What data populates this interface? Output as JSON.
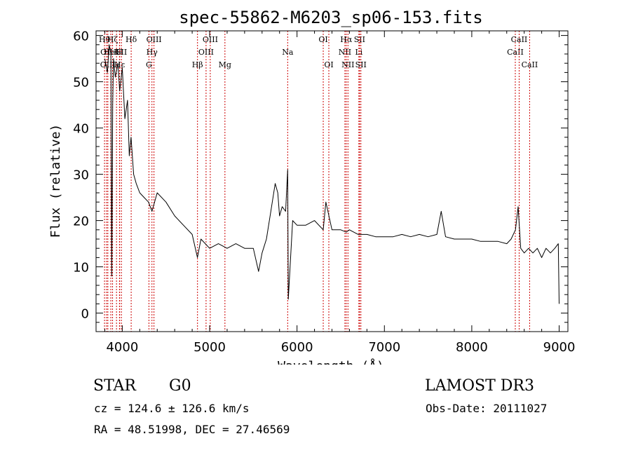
{
  "chart_data": {
    "type": "line",
    "title": "spec-55862-M6203_sp06-153.fits",
    "xlabel": "Wavelength (Å)",
    "ylabel": "Flux (relative)",
    "xlim": [
      3700,
      9100
    ],
    "ylim": [
      -4,
      61
    ],
    "x_ticks": [
      4000,
      5000,
      6000,
      7000,
      8000,
      9000
    ],
    "y_ticks": [
      0,
      10,
      20,
      30,
      40,
      50,
      60
    ],
    "grid": false,
    "colors": {
      "spectrum": "#000000",
      "lines": "#cc0000"
    },
    "series": [
      {
        "name": "spectrum",
        "x": [
          3800,
          3830,
          3850,
          3870,
          3880,
          3890,
          3900,
          3920,
          3950,
          3970,
          4000,
          4030,
          4060,
          4080,
          4100,
          4130,
          4160,
          4200,
          4250,
          4300,
          4340,
          4400,
          4500,
          4600,
          4700,
          4800,
          4860,
          4900,
          5000,
          5100,
          5200,
          5300,
          5400,
          5500,
          5560,
          5600,
          5650,
          5700,
          5750,
          5780,
          5800,
          5830,
          5870,
          5893,
          5900,
          5950,
          6000,
          6100,
          6200,
          6300,
          6330,
          6400,
          6500,
          6563,
          6600,
          6700,
          6800,
          6900,
          7000,
          7100,
          7200,
          7300,
          7400,
          7500,
          7600,
          7650,
          7700,
          7800,
          7900,
          8000,
          8100,
          8200,
          8300,
          8400,
          8450,
          8500,
          8530,
          8560,
          8600,
          8650,
          8700,
          8750,
          8800,
          8850,
          8900,
          8950,
          8990,
          9000
        ],
        "y": [
          55,
          52,
          58,
          56,
          8,
          45,
          55,
          51,
          54,
          48,
          53,
          42,
          46,
          34,
          38,
          30,
          28,
          26,
          25,
          24,
          22,
          26,
          24,
          21,
          19,
          17,
          12,
          16,
          14,
          15,
          14,
          15,
          14,
          14,
          9,
          13,
          16,
          22,
          28,
          26,
          21,
          23,
          22,
          31,
          3,
          20,
          19,
          19,
          20,
          18,
          24,
          18,
          18,
          17.5,
          18,
          17,
          17,
          16.5,
          16.5,
          16.5,
          17,
          16.5,
          17,
          16.5,
          17,
          22,
          16.5,
          16,
          16,
          16,
          15.5,
          15.5,
          15.5,
          15,
          16,
          18,
          23,
          14,
          13,
          14,
          13,
          14,
          12,
          14,
          13,
          14,
          15,
          2
        ]
      }
    ],
    "line_markers": [
      {
        "wave": 3797,
        "label": "Hθ",
        "row": 0
      },
      {
        "wave": 3820,
        "label": "OII",
        "row": 1
      },
      {
        "wave": 3835,
        "label": "OIII",
        "row": 2
      },
      {
        "wave": 3889,
        "label": "Hζ",
        "row": 0
      },
      {
        "wave": 3869,
        "label": "HeI",
        "row": 1
      },
      {
        "wave": 3934,
        "label": "K",
        "row": 1
      },
      {
        "wave": 3968,
        "label": "H",
        "row": 1
      },
      {
        "wave": 3970,
        "label": "Hε",
        "row": 2
      },
      {
        "wave": 3990,
        "label": "SII",
        "row": 1
      },
      {
        "wave": 4102,
        "label": "Hδ",
        "row": 0
      },
      {
        "wave": 4305,
        "label": "G",
        "row": 2
      },
      {
        "wave": 4340,
        "label": "Hγ",
        "row": 1
      },
      {
        "wave": 4363,
        "label": "OIII",
        "row": 0
      },
      {
        "wave": 4861,
        "label": "Hβ",
        "row": 2
      },
      {
        "wave": 4959,
        "label": "OIII",
        "row": 1
      },
      {
        "wave": 5007,
        "label": "OIII",
        "row": 0
      },
      {
        "wave": 5175,
        "label": "Mg",
        "row": 2
      },
      {
        "wave": 5893,
        "label": "Na",
        "row": 1
      },
      {
        "wave": 6300,
        "label": "OI",
        "row": 0
      },
      {
        "wave": 6364,
        "label": "OI",
        "row": 2
      },
      {
        "wave": 6548,
        "label": "NII",
        "row": 1
      },
      {
        "wave": 6563,
        "label": "Hα",
        "row": 0
      },
      {
        "wave": 6583,
        "label": "NII",
        "row": 2
      },
      {
        "wave": 6708,
        "label": "Li",
        "row": 1
      },
      {
        "wave": 6716,
        "label": "SII",
        "row": 0
      },
      {
        "wave": 6731,
        "label": "SII",
        "row": 2
      },
      {
        "wave": 8498,
        "label": "CaII",
        "row": 1
      },
      {
        "wave": 8542,
        "label": "CaII",
        "row": 0
      },
      {
        "wave": 8662,
        "label": "CaII",
        "row": 2
      }
    ]
  },
  "info": {
    "class": "STAR",
    "subclass": "G0",
    "survey": "LAMOST DR3",
    "cz": "cz = 124.6 ± 126.6 km/s",
    "obs_date": "Obs-Date: 20111027",
    "coords": "RA =  48.51998, DEC =  27.46569"
  }
}
